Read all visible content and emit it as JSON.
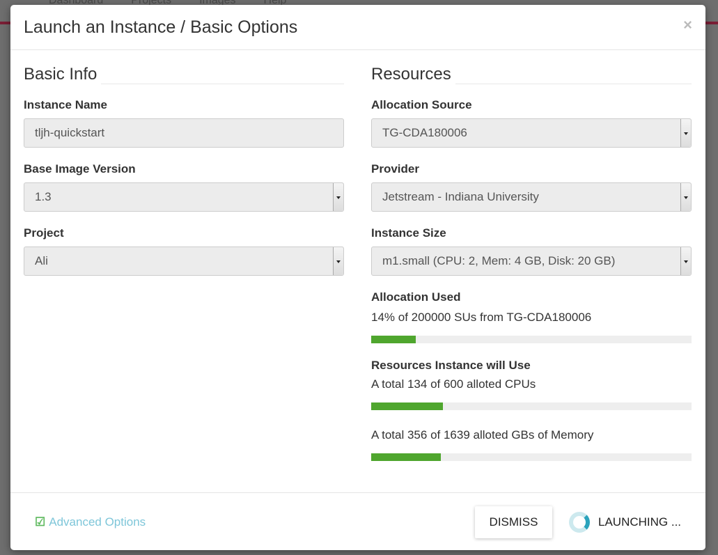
{
  "background": {
    "nav": [
      "Dashboard",
      "Projects",
      "Images",
      "Help"
    ]
  },
  "modal": {
    "title": "Launch an Instance / Basic Options",
    "close": "×",
    "basic_info": {
      "heading": "Basic Info",
      "instance_name": {
        "label": "Instance Name",
        "value": "tljh-quickstart"
      },
      "base_image_version": {
        "label": "Base Image Version",
        "value": "1.3"
      },
      "project": {
        "label": "Project",
        "value": "Ali"
      }
    },
    "resources": {
      "heading": "Resources",
      "allocation_source": {
        "label": "Allocation Source",
        "value": "TG-CDA180006"
      },
      "provider": {
        "label": "Provider",
        "value": "Jetstream - Indiana University"
      },
      "instance_size": {
        "label": "Instance Size",
        "value": "m1.small (CPU: 2, Mem: 4 GB, Disk: 20 GB)"
      },
      "allocation_used": {
        "label": "Allocation Used",
        "text": "14% of 200000 SUs from TG-CDA180006",
        "percent": 14
      },
      "will_use": {
        "label": "Resources Instance will Use",
        "cpus": {
          "text": "A total 134 of 600 alloted CPUs",
          "percent": 22.3
        },
        "memory": {
          "text": "A total 356 of 1639 alloted GBs of Memory",
          "percent": 21.7
        }
      }
    },
    "footer": {
      "advanced_options": "Advanced Options",
      "dismiss": "DISMISS",
      "launching": "LAUNCHING ..."
    },
    "colors": {
      "bar": "#4fa62e",
      "link": "#7ec6d9"
    }
  }
}
